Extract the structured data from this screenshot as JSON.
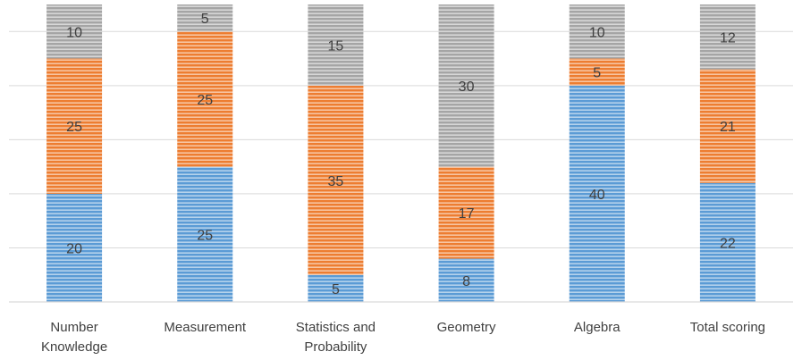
{
  "chart_data": {
    "type": "bar",
    "stacked": true,
    "categories": [
      [
        "Number",
        "Knowledge"
      ],
      [
        "Measurement"
      ],
      [
        "Statistics and",
        "Probability"
      ],
      [
        "Geometry"
      ],
      [
        "Algebra"
      ],
      [
        "Total scoring"
      ]
    ],
    "series": [
      {
        "color": "#5b9bd5",
        "values": [
          20,
          25,
          5,
          8,
          40,
          22
        ]
      },
      {
        "color": "#ed7d31",
        "values": [
          25,
          25,
          35,
          17,
          5,
          21
        ]
      },
      {
        "color": "#a5a5a5",
        "values": [
          10,
          5,
          15,
          30,
          10,
          12
        ]
      }
    ],
    "ylim": [
      0,
      55
    ],
    "grid": true,
    "legend": "none",
    "fill_pattern": "horizontal-stripes"
  }
}
